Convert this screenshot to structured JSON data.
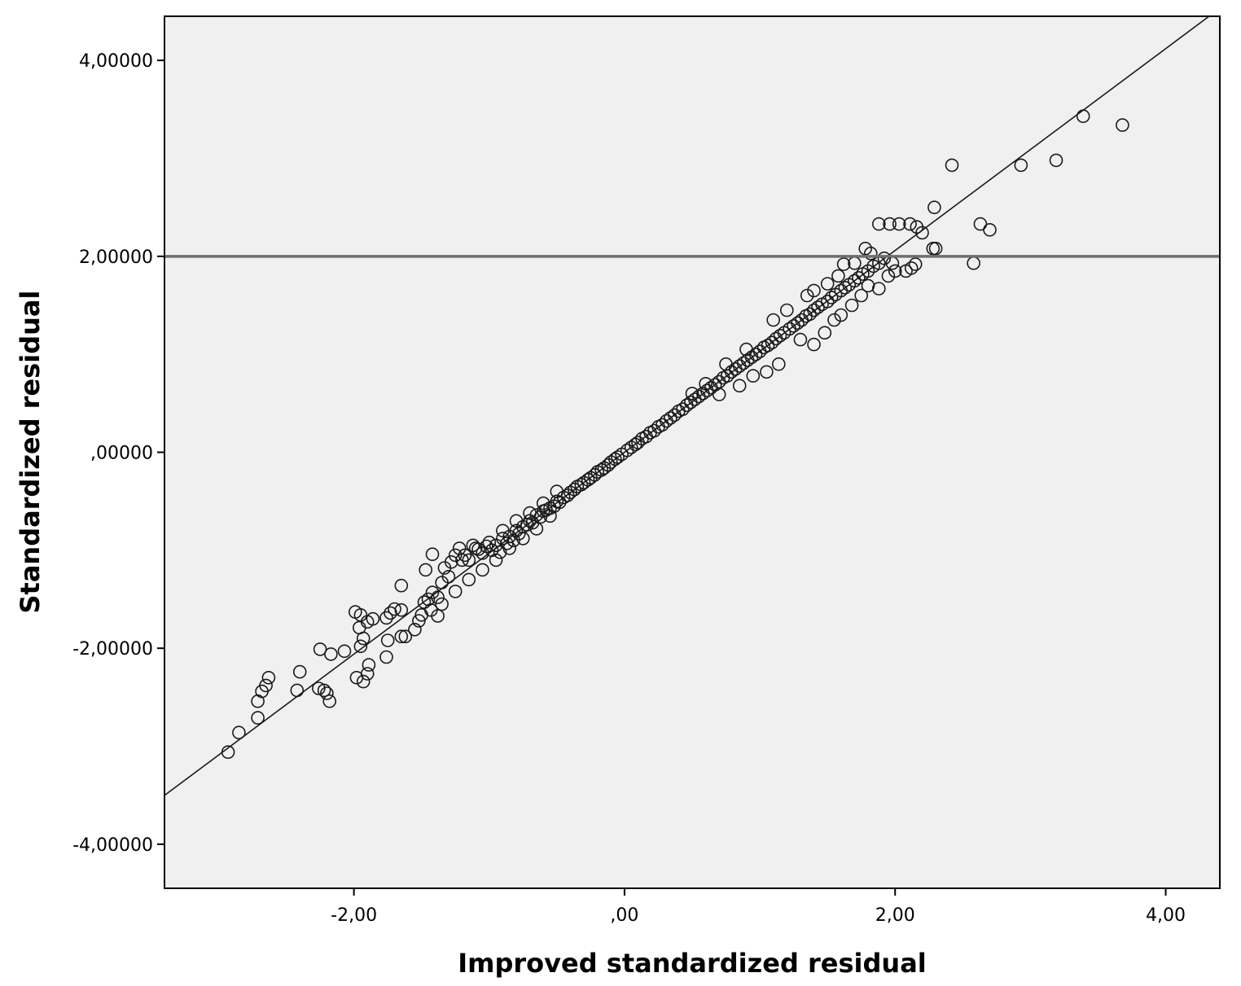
{
  "chart_data": {
    "type": "scatter",
    "title": "",
    "xlabel": "Improved standardized residual",
    "ylabel": "Standardized residual",
    "xlim": [
      -3.4,
      4.4
    ],
    "ylim": [
      -4.45,
      4.45
    ],
    "x_ticks": [
      {
        "value": -2,
        "label": "-2,00"
      },
      {
        "value": 0,
        "label": ",00"
      },
      {
        "value": 2,
        "label": "2,00"
      },
      {
        "value": 4,
        "label": "4,00"
      }
    ],
    "y_ticks": [
      {
        "value": 4,
        "label": "4,00000"
      },
      {
        "value": 2,
        "label": "2,00000"
      },
      {
        "value": 0,
        "label": ",00000"
      },
      {
        "value": -2,
        "label": "-2,00000"
      },
      {
        "value": -4,
        "label": "-4,00000"
      }
    ],
    "reference_line_y": 2,
    "fit_line": {
      "slope": 1.03,
      "intercept": 0
    },
    "grid": false,
    "legend": "none",
    "colors": {
      "plot_background": "#f0f0f0",
      "points": "#1a1a1a",
      "reference_line": "#6e6e6e",
      "fit_line": "#1a1a1a"
    },
    "series": [
      {
        "points": [
          [
            -2.93,
            -3.06
          ],
          [
            -2.85,
            -2.86
          ],
          [
            -2.71,
            -2.71
          ],
          [
            -2.68,
            -2.44
          ],
          [
            -2.65,
            -2.38
          ],
          [
            -2.63,
            -2.3
          ],
          [
            -2.71,
            -2.54
          ],
          [
            -2.42,
            -2.43
          ],
          [
            -2.4,
            -2.24
          ],
          [
            -2.26,
            -2.41
          ],
          [
            -2.22,
            -2.43
          ],
          [
            -2.2,
            -2.46
          ],
          [
            -2.18,
            -2.54
          ],
          [
            -2.25,
            -2.01
          ],
          [
            -2.17,
            -2.06
          ],
          [
            -2.07,
            -2.03
          ],
          [
            -1.98,
            -2.3
          ],
          [
            -1.93,
            -2.34
          ],
          [
            -1.9,
            -2.26
          ],
          [
            -1.89,
            -2.17
          ],
          [
            -1.95,
            -1.98
          ],
          [
            -1.93,
            -1.9
          ],
          [
            -1.96,
            -1.79
          ],
          [
            -1.99,
            -1.63
          ],
          [
            -1.95,
            -1.66
          ],
          [
            -1.9,
            -1.73
          ],
          [
            -1.86,
            -1.7
          ],
          [
            -1.76,
            -1.69
          ],
          [
            -1.73,
            -1.64
          ],
          [
            -1.7,
            -1.6
          ],
          [
            -1.65,
            -1.61
          ],
          [
            -1.76,
            -2.09
          ],
          [
            -1.75,
            -1.92
          ],
          [
            -1.65,
            -1.88
          ],
          [
            -1.62,
            -1.88
          ],
          [
            -1.55,
            -1.81
          ],
          [
            -1.52,
            -1.72
          ],
          [
            -1.5,
            -1.66
          ],
          [
            -1.65,
            -1.36
          ],
          [
            -1.43,
            -1.61
          ],
          [
            -1.38,
            -1.67
          ],
          [
            -1.48,
            -1.53
          ],
          [
            -1.45,
            -1.5
          ],
          [
            -1.42,
            -1.43
          ],
          [
            -1.38,
            -1.48
          ],
          [
            -1.47,
            -1.2
          ],
          [
            -1.42,
            -1.04
          ],
          [
            -1.35,
            -1.33
          ],
          [
            -1.3,
            -1.27
          ],
          [
            -1.33,
            -1.18
          ],
          [
            -1.28,
            -1.12
          ],
          [
            -1.25,
            -1.05
          ],
          [
            -1.22,
            -0.98
          ],
          [
            -1.18,
            -1.05
          ],
          [
            -1.15,
            -1.1
          ],
          [
            -1.12,
            -0.95
          ],
          [
            -1.08,
            -0.99
          ],
          [
            -1.05,
            -1.03
          ],
          [
            -1.02,
            -0.96
          ],
          [
            -0.98,
            -1.0
          ],
          [
            -0.95,
            -0.95
          ],
          [
            -0.92,
            -1.02
          ],
          [
            -0.9,
            -0.88
          ],
          [
            -0.87,
            -0.93
          ],
          [
            -0.85,
            -0.86
          ],
          [
            -0.82,
            -0.9
          ],
          [
            -0.8,
            -0.8
          ],
          [
            -0.78,
            -0.83
          ],
          [
            -0.75,
            -0.76
          ],
          [
            -0.72,
            -0.74
          ],
          [
            -0.7,
            -0.7
          ],
          [
            -0.68,
            -0.72
          ],
          [
            -0.65,
            -0.64
          ],
          [
            -0.62,
            -0.66
          ],
          [
            -0.6,
            -0.6
          ],
          [
            -0.58,
            -0.59
          ],
          [
            -0.55,
            -0.57
          ],
          [
            -0.52,
            -0.55
          ],
          [
            -0.5,
            -0.5
          ],
          [
            -0.48,
            -0.51
          ],
          [
            -0.45,
            -0.46
          ],
          [
            -0.42,
            -0.44
          ],
          [
            -0.4,
            -0.41
          ],
          [
            -0.37,
            -0.38
          ],
          [
            -0.35,
            -0.35
          ],
          [
            -0.32,
            -0.33
          ],
          [
            -0.3,
            -0.31
          ],
          [
            -0.27,
            -0.28
          ],
          [
            -0.25,
            -0.26
          ],
          [
            -0.22,
            -0.23
          ],
          [
            -0.2,
            -0.2
          ],
          [
            -0.17,
            -0.18
          ],
          [
            -0.15,
            -0.16
          ],
          [
            -0.12,
            -0.13
          ],
          [
            -0.1,
            -0.1
          ],
          [
            -0.07,
            -0.07
          ],
          [
            -0.05,
            -0.05
          ],
          [
            -0.02,
            -0.02
          ],
          [
            0.02,
            0.02
          ],
          [
            0.05,
            0.05
          ],
          [
            0.08,
            0.08
          ],
          [
            0.1,
            0.1
          ],
          [
            0.13,
            0.14
          ],
          [
            0.16,
            0.16
          ],
          [
            0.19,
            0.2
          ],
          [
            0.22,
            0.22
          ],
          [
            0.25,
            0.26
          ],
          [
            0.28,
            0.28
          ],
          [
            0.31,
            0.32
          ],
          [
            0.34,
            0.35
          ],
          [
            0.37,
            0.38
          ],
          [
            0.4,
            0.42
          ],
          [
            0.43,
            0.44
          ],
          [
            0.46,
            0.48
          ],
          [
            0.49,
            0.51
          ],
          [
            0.52,
            0.54
          ],
          [
            0.55,
            0.57
          ],
          [
            0.58,
            0.6
          ],
          [
            0.61,
            0.63
          ],
          [
            0.64,
            0.66
          ],
          [
            0.67,
            0.69
          ],
          [
            0.7,
            0.72
          ],
          [
            0.73,
            0.76
          ],
          [
            0.76,
            0.78
          ],
          [
            0.79,
            0.82
          ],
          [
            0.82,
            0.85
          ],
          [
            0.85,
            0.88
          ],
          [
            0.88,
            0.91
          ],
          [
            0.91,
            0.94
          ],
          [
            0.94,
            0.97
          ],
          [
            0.97,
            1.0
          ],
          [
            1.0,
            1.03
          ],
          [
            1.03,
            1.07
          ],
          [
            1.06,
            1.09
          ],
          [
            1.09,
            1.12
          ],
          [
            1.12,
            1.16
          ],
          [
            1.15,
            1.19
          ],
          [
            1.18,
            1.22
          ],
          [
            1.22,
            1.26
          ],
          [
            1.25,
            1.29
          ],
          [
            1.28,
            1.32
          ],
          [
            1.31,
            1.35
          ],
          [
            1.34,
            1.39
          ],
          [
            1.37,
            1.41
          ],
          [
            1.4,
            1.45
          ],
          [
            1.43,
            1.48
          ],
          [
            1.46,
            1.51
          ],
          [
            1.5,
            1.54
          ],
          [
            1.53,
            1.58
          ],
          [
            1.56,
            1.61
          ],
          [
            1.6,
            1.65
          ],
          [
            1.63,
            1.68
          ],
          [
            1.66,
            1.71
          ],
          [
            1.7,
            1.75
          ],
          [
            1.73,
            1.78
          ],
          [
            1.76,
            1.82
          ],
          [
            1.8,
            1.85
          ],
          [
            1.84,
            1.9
          ],
          [
            1.88,
            1.93
          ],
          [
            1.92,
            1.98
          ],
          [
            1.14,
            0.9
          ],
          [
            1.05,
            0.82
          ],
          [
            0.95,
            0.78
          ],
          [
            0.85,
            0.68
          ],
          [
            0.7,
            0.59
          ],
          [
            1.3,
            1.15
          ],
          [
            1.4,
            1.1
          ],
          [
            1.48,
            1.22
          ],
          [
            1.55,
            1.35
          ],
          [
            1.6,
            1.4
          ],
          [
            1.68,
            1.5
          ],
          [
            1.75,
            1.6
          ],
          [
            1.8,
            1.7
          ],
          [
            1.88,
            1.67
          ],
          [
            1.95,
            1.8
          ],
          [
            2.0,
            1.85
          ],
          [
            2.08,
            1.85
          ],
          [
            2.12,
            1.88
          ],
          [
            2.15,
            1.92
          ],
          [
            1.4,
            1.65
          ],
          [
            1.5,
            1.72
          ],
          [
            1.58,
            1.8
          ],
          [
            1.62,
            1.92
          ],
          [
            1.7,
            1.93
          ],
          [
            1.78,
            2.08
          ],
          [
            1.82,
            2.03
          ],
          [
            1.98,
            1.93
          ],
          [
            0.5,
            0.6
          ],
          [
            0.6,
            0.7
          ],
          [
            0.75,
            0.9
          ],
          [
            0.9,
            1.05
          ],
          [
            1.1,
            1.35
          ],
          [
            1.2,
            1.45
          ],
          [
            1.35,
            1.6
          ],
          [
            -0.5,
            -0.4
          ],
          [
            -0.6,
            -0.52
          ],
          [
            -0.7,
            -0.62
          ],
          [
            -0.8,
            -0.7
          ],
          [
            -0.9,
            -0.8
          ],
          [
            -1.0,
            -0.92
          ],
          [
            -1.1,
            -0.98
          ],
          [
            -1.2,
            -1.1
          ],
          [
            -0.55,
            -0.65
          ],
          [
            -0.65,
            -0.78
          ],
          [
            -0.75,
            -0.88
          ],
          [
            -0.85,
            -0.98
          ],
          [
            -0.95,
            -1.1
          ],
          [
            -1.05,
            -1.2
          ],
          [
            -1.15,
            -1.3
          ],
          [
            -1.25,
            -1.42
          ],
          [
            -1.35,
            -1.55
          ],
          [
            1.88,
            2.33
          ],
          [
            1.96,
            2.33
          ],
          [
            2.03,
            2.33
          ],
          [
            2.11,
            2.33
          ],
          [
            2.16,
            2.3
          ],
          [
            2.2,
            2.24
          ],
          [
            2.28,
            2.08
          ],
          [
            2.3,
            2.08
          ],
          [
            2.29,
            2.5
          ],
          [
            2.42,
            2.93
          ],
          [
            2.58,
            1.93
          ],
          [
            2.63,
            2.33
          ],
          [
            2.7,
            2.27
          ],
          [
            2.93,
            2.93
          ],
          [
            3.19,
            2.98
          ],
          [
            3.39,
            3.43
          ],
          [
            3.68,
            3.34
          ]
        ]
      }
    ]
  }
}
